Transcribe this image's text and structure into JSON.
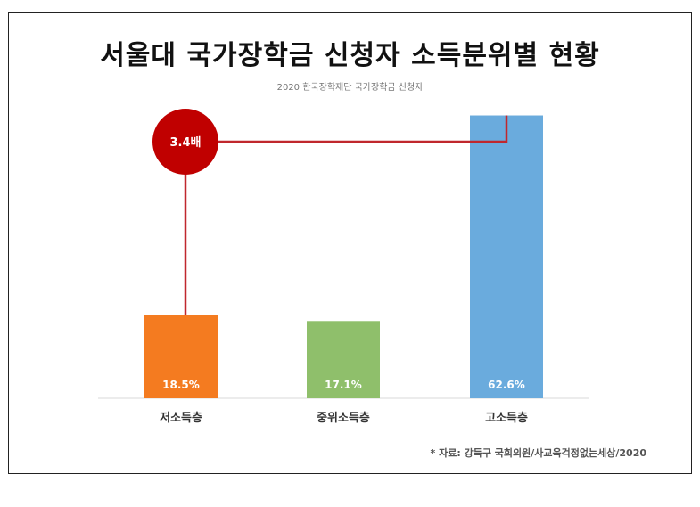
{
  "title": "서울대 국가장학금 신청자 소득분위별 현황",
  "subtitle": "2020 한국장학재단 국가장학금 신청자",
  "source": "* 자료: 강득구 국회의원/사교육걱정없는세상/2020",
  "colors": {
    "low": "#f47b20",
    "mid": "#8fbf6b",
    "high": "#6aabdd",
    "annotation": "#c00000",
    "connector": "#c0272d"
  },
  "chart_data": {
    "type": "bar",
    "categories": [
      "저소득층",
      "중위소득층",
      "고소득층"
    ],
    "values": [
      18.5,
      17.1,
      62.6
    ],
    "value_labels": [
      "18.5%",
      "17.1%",
      "62.6%"
    ],
    "ylim": [
      0,
      70
    ],
    "grid": false,
    "legend": "none",
    "annotation": {
      "text": "3.4배",
      "from_category": "저소득층",
      "to_category": "고소득층"
    }
  }
}
